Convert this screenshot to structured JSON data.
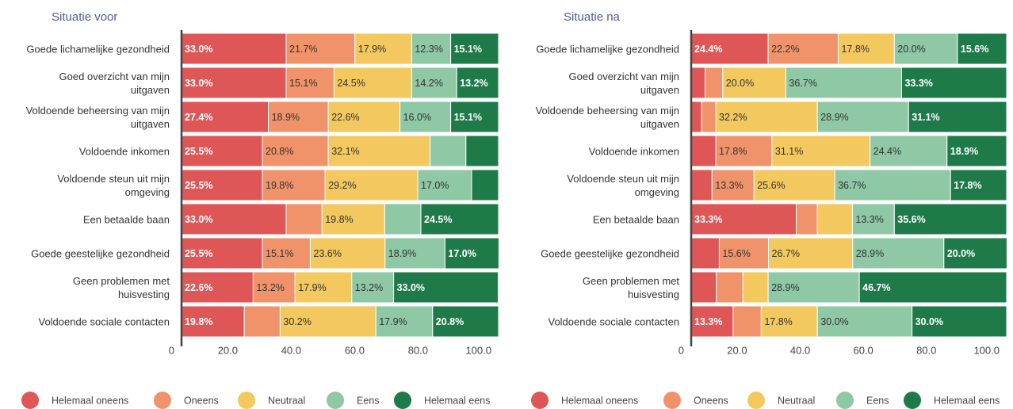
{
  "chart_data": [
    {
      "type": "bar",
      "orientation": "horizontal",
      "stacked": true,
      "title": "Situatie voor",
      "categories": [
        "Goede lichamelijke gezondheid",
        "Goed overzicht van mijn\nuitgaven",
        "Voldoende beheersing van mijn\nuitgaven",
        "Voldoende inkomen",
        "Voldoende steun uit mijn\nomgeving",
        "Een betaalde baan",
        "Goede geestelijke gezondheid",
        "Geen problemen met\nhuisvesting",
        "Voldoende sociale contacten"
      ],
      "series": [
        {
          "name": "Helemaal oneens",
          "color": "#df5656",
          "values": [
            33.0,
            33.0,
            27.4,
            25.5,
            25.5,
            33.0,
            25.5,
            22.6,
            19.8
          ],
          "value_labels": [
            "33.0%",
            "33.0%",
            "27.4%",
            "25.5%",
            "25.5%",
            "33.0%",
            "25.5%",
            "22.6%",
            "19.8%"
          ]
        },
        {
          "name": "Oneens",
          "color": "#f0936a",
          "values": [
            21.7,
            15.1,
            18.9,
            20.8,
            19.8,
            11.3,
            15.1,
            13.2,
            11.3
          ],
          "value_labels": [
            "21.7%",
            "15.1%",
            "18.9%",
            "20.8%",
            "19.8%",
            null,
            "15.1%",
            "13.2%",
            null
          ]
        },
        {
          "name": "Neutraal",
          "color": "#f3c85e",
          "values": [
            17.9,
            24.5,
            22.6,
            32.1,
            29.2,
            19.8,
            23.6,
            17.9,
            30.2
          ],
          "value_labels": [
            "17.9%",
            "24.5%",
            "22.6%",
            "32.1%",
            "29.2%",
            "19.8%",
            "23.6%",
            "17.9%",
            "30.2%"
          ]
        },
        {
          "name": "Eens",
          "color": "#8ec8a4",
          "values": [
            12.3,
            14.2,
            16.0,
            11.3,
            17.0,
            11.4,
            18.9,
            13.2,
            17.9
          ],
          "value_labels": [
            "12.3%",
            "14.2%",
            "16.0%",
            null,
            "17.0%",
            null,
            "18.9%",
            "13.2%",
            "17.9%"
          ]
        },
        {
          "name": "Helemaal eens",
          "color": "#1f7a4a",
          "values": [
            15.1,
            13.2,
            15.1,
            10.3,
            8.5,
            24.5,
            17.0,
            33.0,
            20.8
          ],
          "value_labels": [
            "15.1%",
            "13.2%",
            "15.1%",
            null,
            null,
            "24.5%",
            "17.0%",
            "33.0%",
            "20.8%"
          ]
        }
      ],
      "xlim": [
        0,
        100
      ],
      "xticks": [
        0,
        {
          "value": 20,
          "label": "20.0"
        },
        {
          "value": 40,
          "label": "40.0"
        },
        {
          "value": 60,
          "label": "60.0"
        },
        {
          "value": 80,
          "label": "80.0"
        },
        {
          "value": 100,
          "label": "100.0"
        }
      ],
      "legend": "bottom"
    },
    {
      "type": "bar",
      "orientation": "horizontal",
      "stacked": true,
      "title": "Situatie na",
      "categories": [
        "Goede lichamelijke gezondheid",
        "Goed overzicht van mijn\nuitgaven",
        "Voldoende beheersing van mijn\nuitgaven",
        "Voldoende inkomen",
        "Voldoende steun uit mijn\nomgeving",
        "Een betaalde baan",
        "Goede geestelijke gezondheid",
        "Geen problemen met\nhuisvesting",
        "Voldoende sociale contacten"
      ],
      "series": [
        {
          "name": "Helemaal oneens",
          "color": "#df5656",
          "values": [
            24.4,
            4.4,
            3.3,
            7.8,
            6.6,
            33.3,
            8.9,
            8.0,
            13.3
          ],
          "value_labels": [
            "24.4%",
            null,
            null,
            null,
            null,
            "33.3%",
            null,
            null,
            "13.3%"
          ]
        },
        {
          "name": "Oneens",
          "color": "#f0936a",
          "values": [
            22.2,
            5.6,
            4.5,
            17.8,
            13.3,
            6.7,
            15.6,
            8.4,
            8.9
          ],
          "value_labels": [
            "22.2%",
            null,
            null,
            "17.8%",
            "13.3%",
            null,
            "15.6%",
            null,
            null
          ]
        },
        {
          "name": "Neutraal",
          "color": "#f3c85e",
          "values": [
            17.8,
            20.0,
            32.2,
            31.1,
            25.6,
            11.1,
            26.7,
            8.0,
            17.8
          ],
          "value_labels": [
            "17.8%",
            "20.0%",
            "32.2%",
            "31.1%",
            "25.6%",
            null,
            "26.7%",
            null,
            "17.8%"
          ]
        },
        {
          "name": "Eens",
          "color": "#8ec8a4",
          "values": [
            20.0,
            36.7,
            28.9,
            24.4,
            36.7,
            13.3,
            28.9,
            28.9,
            30.0
          ],
          "value_labels": [
            "20.0%",
            "36.7%",
            "28.9%",
            "24.4%",
            "36.7%",
            "13.3%",
            "28.9%",
            "28.9%",
            "30.0%"
          ]
        },
        {
          "name": "Helemaal eens",
          "color": "#1f7a4a",
          "values": [
            15.6,
            33.3,
            31.1,
            18.9,
            17.8,
            35.6,
            20.0,
            46.7,
            30.0
          ],
          "value_labels": [
            "15.6%",
            "33.3%",
            "31.1%",
            "18.9%",
            "17.8%",
            "35.6%",
            "20.0%",
            "46.7%",
            "30.0%"
          ]
        }
      ],
      "xlim": [
        0,
        100
      ],
      "xticks": [
        0,
        {
          "value": 20,
          "label": "20.0"
        },
        {
          "value": 40,
          "label": "40.0"
        },
        {
          "value": 60,
          "label": "60.0"
        },
        {
          "value": 80,
          "label": "80.0"
        },
        {
          "value": 100,
          "label": "100.0"
        }
      ],
      "legend": "bottom"
    }
  ]
}
